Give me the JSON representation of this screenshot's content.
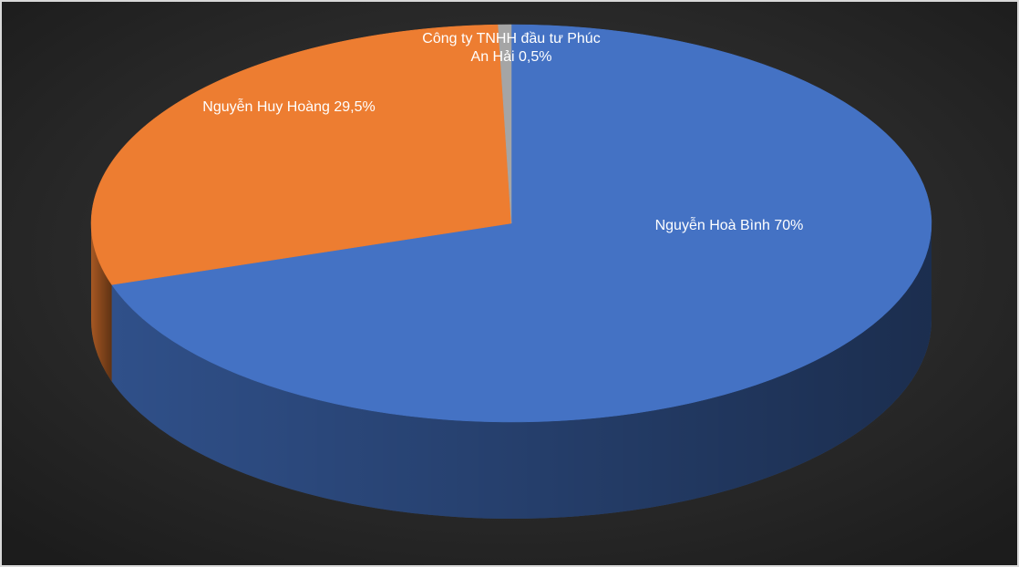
{
  "chart_data": {
    "type": "pie",
    "categories": [
      "Nguyễn Hoà Bình",
      "Nguyễn Huy Hoàng",
      "Công ty TNHH đầu tư Phúc An Hải"
    ],
    "values": [
      70,
      29.5,
      0.5
    ],
    "value_labels": [
      "70%",
      "29,5%",
      "0,5%"
    ],
    "colors": [
      "#4472c4",
      "#ed7d31",
      "#a5a5a5"
    ]
  }
}
